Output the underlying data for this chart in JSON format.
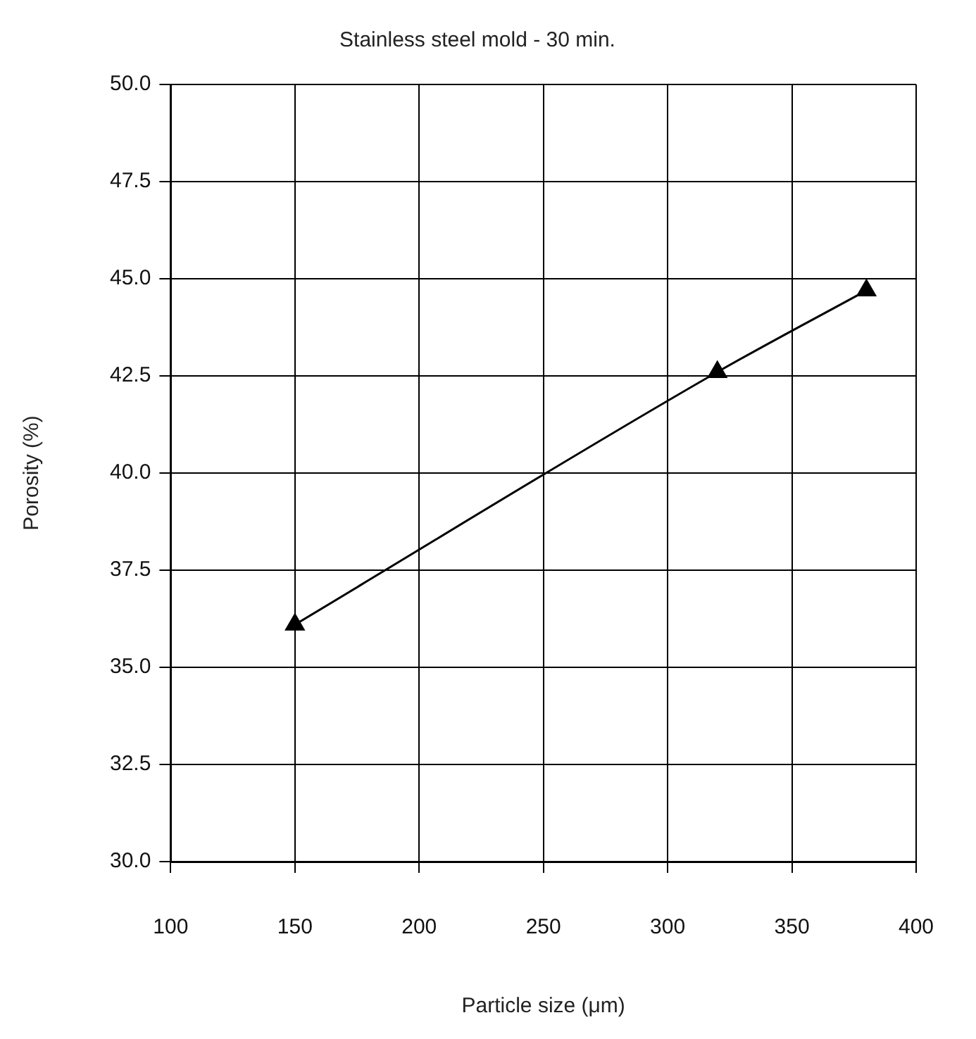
{
  "chart_data": {
    "type": "line",
    "title": "Stainless steel mold - 30 min.",
    "xlabel": "Particle size (μm)",
    "ylabel": "Porosity (%)",
    "x": [
      150,
      320,
      380
    ],
    "series": [
      {
        "color": "#000000",
        "values": [
          36.1,
          42.6,
          44.7
        ]
      }
    ],
    "xlim": [
      100,
      400
    ],
    "xticks": [
      100,
      150,
      200,
      250,
      300,
      350,
      400
    ],
    "ylim": [
      30,
      50
    ],
    "yticks": [
      {
        "value": 30,
        "label": "30.0"
      },
      {
        "value": 32.5,
        "label": "32.5"
      },
      {
        "value": 35,
        "label": "35.0"
      },
      {
        "value": 37.5,
        "label": "37.5"
      },
      {
        "value": 40,
        "label": "40.0"
      },
      {
        "value": 42.5,
        "label": "42.5"
      },
      {
        "value": 45,
        "label": "45.0"
      },
      {
        "value": 47.5,
        "label": "47.5"
      },
      {
        "value": 50,
        "label": "50.0"
      }
    ],
    "grid": true,
    "marker": "triangle",
    "line_style": "solid"
  }
}
